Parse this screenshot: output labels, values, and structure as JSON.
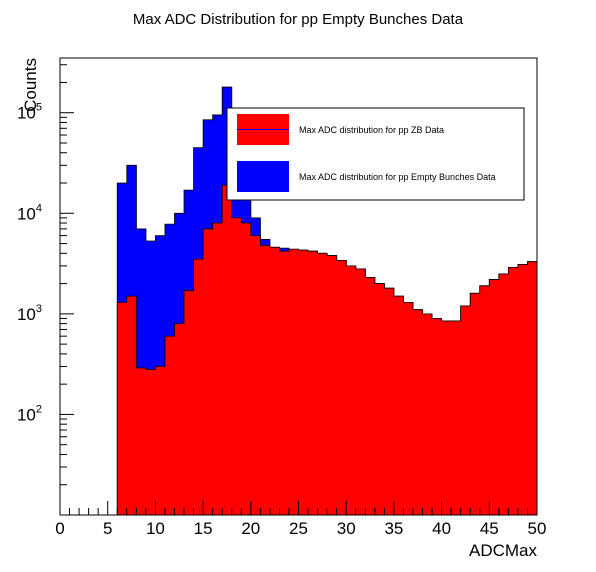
{
  "chart_data": {
    "type": "bar",
    "title": "Max ADC Distribution for pp Empty Bunches Data",
    "xlabel": "ADCMax",
    "ylabel": "Counts",
    "xlim": [
      0,
      50
    ],
    "ylim": [
      10,
      350000
    ],
    "y_scale": "log",
    "grid": false,
    "legend_position": "top-right",
    "bin_width": 1,
    "x_ticks": [
      "0",
      "5",
      "10",
      "15",
      "20",
      "25",
      "30",
      "35",
      "40",
      "45",
      "50"
    ],
    "y_ticks": [
      {
        "base": "10",
        "exp": "2",
        "value": 100
      },
      {
        "base": "10",
        "exp": "3",
        "value": 1000
      },
      {
        "base": "10",
        "exp": "4",
        "value": 10000
      },
      {
        "base": "10",
        "exp": "5",
        "value": 100000
      }
    ],
    "x": [
      0,
      1,
      2,
      3,
      4,
      5,
      6,
      7,
      8,
      9,
      10,
      11,
      12,
      13,
      14,
      15,
      16,
      17,
      18,
      19,
      20,
      21,
      22,
      23,
      24,
      25,
      26,
      27,
      28,
      29,
      30,
      31,
      32,
      33,
      34,
      35,
      36,
      37,
      38,
      39,
      40,
      41,
      42,
      43,
      44,
      45,
      46,
      47,
      48,
      49
    ],
    "series": [
      {
        "name": "Max ADC distribution for pp Empty Bunches Data",
        "color": "#0000ff",
        "values": [
          0,
          0,
          0,
          0,
          0,
          0,
          20000,
          30000,
          7000,
          5300,
          6000,
          7800,
          10000,
          17000,
          45000,
          85000,
          95000,
          180000,
          80000,
          22000,
          9000,
          5500,
          4500,
          4500,
          4300,
          4300,
          4200,
          4000,
          3800,
          3400,
          3000,
          2800,
          2300,
          2000,
          1800,
          1500,
          1300,
          1100,
          1000,
          900,
          850,
          850,
          1200,
          1600,
          1900,
          2200,
          2500,
          2900,
          3100,
          3300
        ]
      },
      {
        "name": "Max ADC distribution for pp ZB Data",
        "color": "#ff0000",
        "values": [
          0,
          0,
          0,
          0,
          0,
          0,
          1300,
          1500,
          290,
          280,
          300,
          600,
          800,
          1700,
          3500,
          7000,
          8000,
          19000,
          9000,
          8000,
          6000,
          4800,
          4600,
          4200,
          4400,
          4300,
          4200,
          4000,
          3800,
          3400,
          3000,
          2800,
          2300,
          2000,
          1800,
          1500,
          1300,
          1100,
          1000,
          900,
          850,
          850,
          1200,
          1600,
          1900,
          2200,
          2500,
          2900,
          3100,
          3300
        ]
      }
    ],
    "legend": [
      {
        "label": "Max ADC distribution for pp ZB Data",
        "color": "#ff0000"
      },
      {
        "label": "Max ADC distribution for pp Empty Bunches Data",
        "color": "#0000ff"
      }
    ]
  }
}
